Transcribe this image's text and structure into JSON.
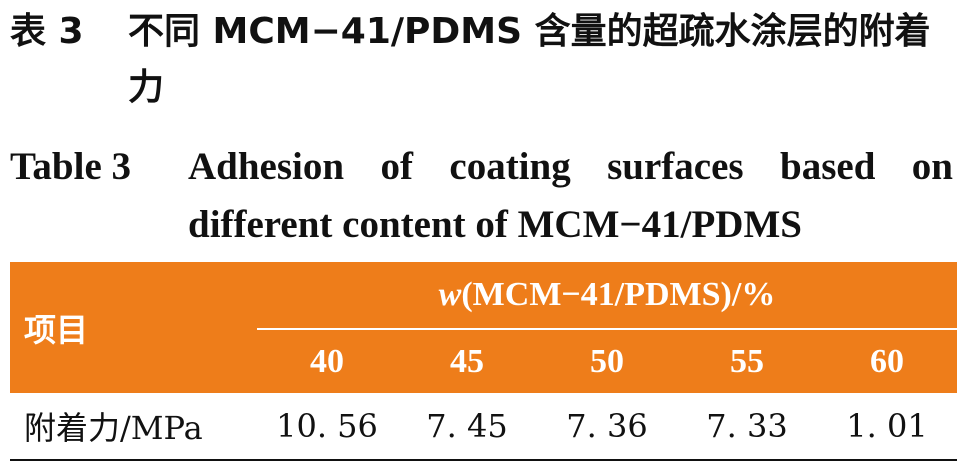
{
  "caption": {
    "cn_number": "表 3",
    "cn_text": "不同 MCM−41/PDMS 含量的超疏水涂层的附着力",
    "en_number": "Table 3",
    "en_text": "Adhesion of coating surfaces based on different content of MCM−41/PDMS"
  },
  "table": {
    "item_header": "项目",
    "group_header_var": "w",
    "group_header_rest": "(MCM−41/PDMS)/%",
    "columns": [
      "40",
      "45",
      "50",
      "55",
      "60"
    ],
    "rows": [
      {
        "label": "附着力/MPa",
        "values": [
          "10. 56",
          "7. 45",
          "7. 36",
          "7. 33",
          "1. 01"
        ]
      }
    ]
  },
  "colors": {
    "header_bg": "#ee7d1a",
    "header_text": "#ffffff"
  }
}
